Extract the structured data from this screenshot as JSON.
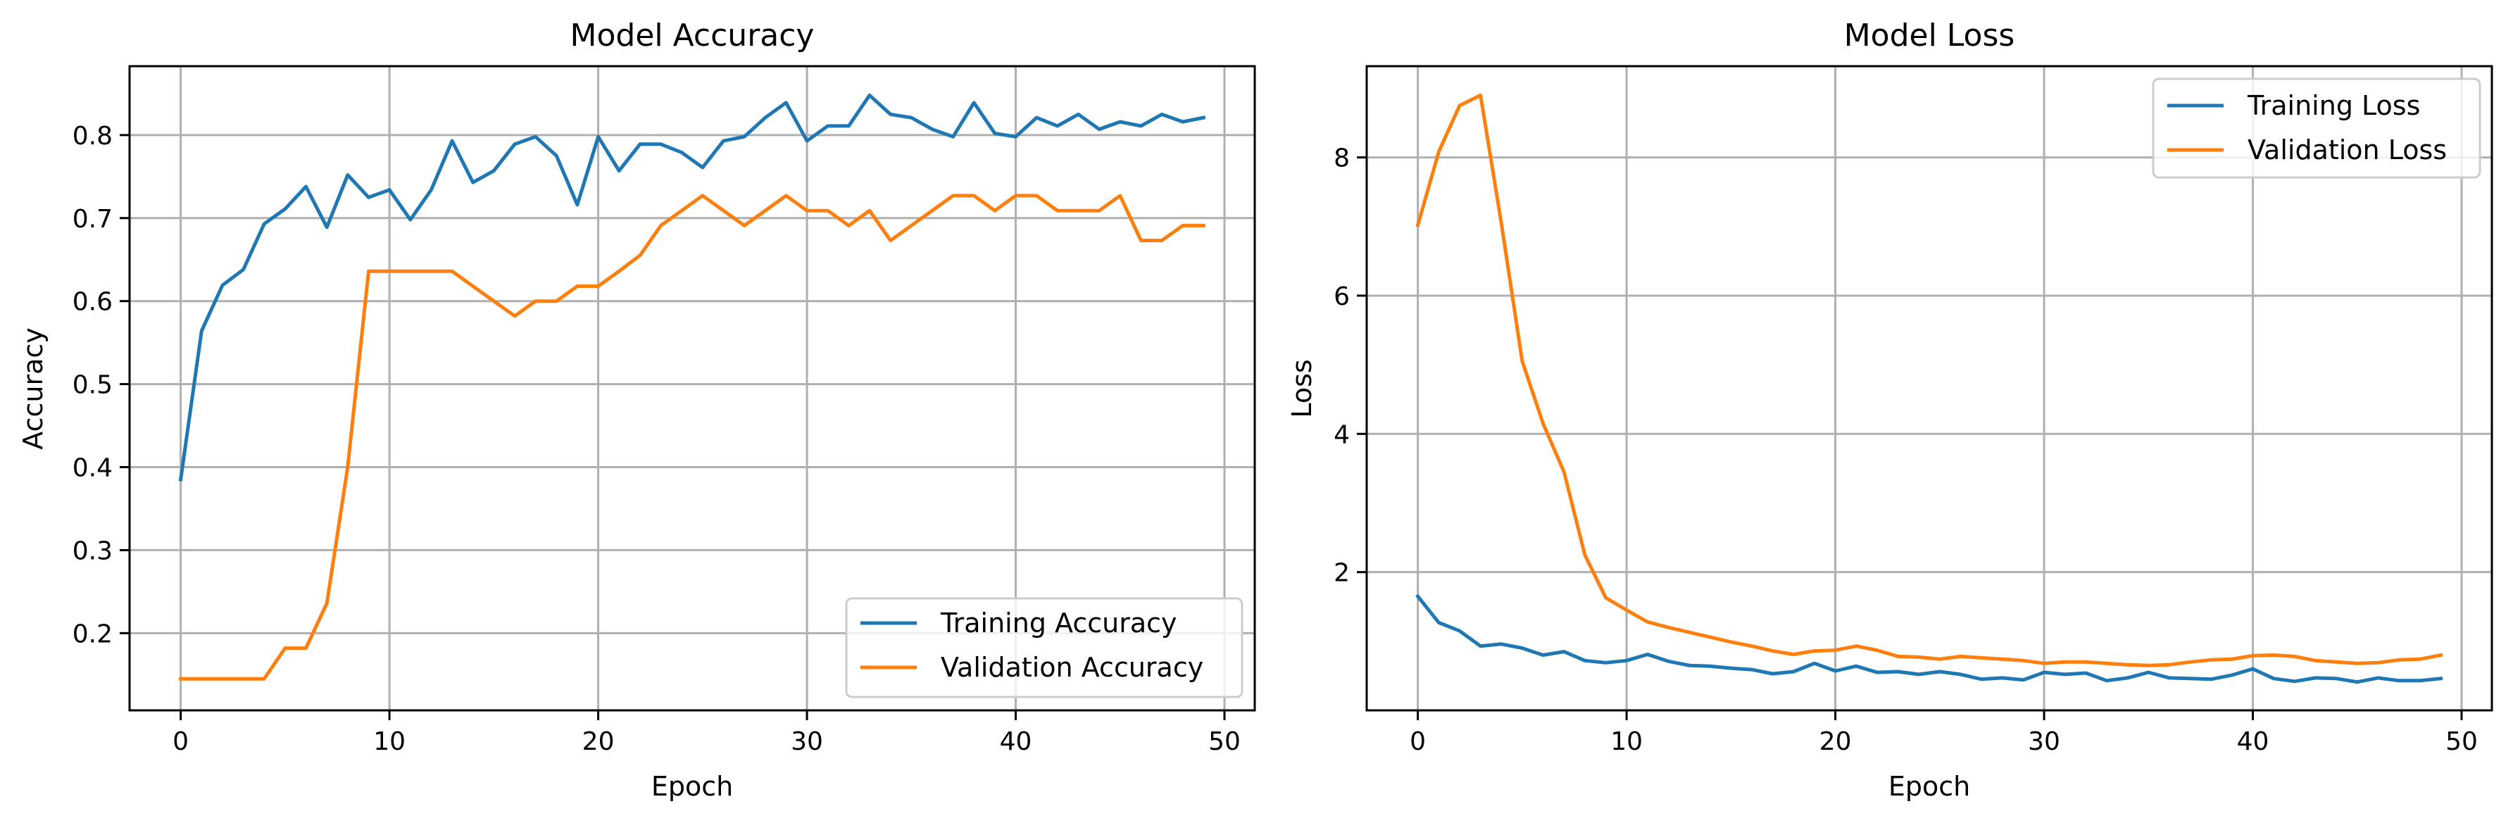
{
  "chart_data": [
    {
      "type": "line",
      "title": "Model Accuracy",
      "xlabel": "Epoch",
      "ylabel": "Accuracy",
      "xlim": [
        -2.45,
        51.45
      ],
      "ylim": [
        0.107,
        0.883
      ],
      "xticks": [
        0,
        10,
        20,
        30,
        40,
        50
      ],
      "yticks": [
        0.2,
        0.3,
        0.4,
        0.5,
        0.6,
        0.7,
        0.8
      ],
      "grid": true,
      "legend_position": "lower-right",
      "x": [
        0,
        1,
        2,
        3,
        4,
        5,
        6,
        7,
        8,
        9,
        10,
        11,
        12,
        13,
        14,
        15,
        16,
        17,
        18,
        19,
        20,
        21,
        22,
        23,
        24,
        25,
        26,
        27,
        28,
        29,
        30,
        31,
        32,
        33,
        34,
        35,
        36,
        37,
        38,
        39,
        40,
        41,
        42,
        43,
        44,
        45,
        46,
        47,
        48,
        49
      ],
      "series": [
        {
          "name": "Training Accuracy",
          "color": "#1f77b4",
          "values": [
            0.385,
            0.564,
            0.619,
            0.638,
            0.693,
            0.711,
            0.738,
            0.689,
            0.752,
            0.725,
            0.734,
            0.698,
            0.734,
            0.793,
            0.743,
            0.757,
            0.789,
            0.798,
            0.775,
            0.716,
            0.798,
            0.757,
            0.789,
            0.789,
            0.779,
            0.761,
            0.793,
            0.798,
            0.821,
            0.839,
            0.793,
            0.811,
            0.811,
            0.848,
            0.825,
            0.821,
            0.807,
            0.798,
            0.839,
            0.802,
            0.798,
            0.821,
            0.811,
            0.825,
            0.807,
            0.816,
            0.811,
            0.825,
            0.816,
            0.821
          ]
        },
        {
          "name": "Validation Accuracy",
          "color": "#ff7f0e",
          "values": [
            0.145,
            0.145,
            0.145,
            0.145,
            0.145,
            0.182,
            0.182,
            0.236,
            0.4,
            0.636,
            0.636,
            0.636,
            0.636,
            0.636,
            0.618,
            0.6,
            0.582,
            0.6,
            0.6,
            0.618,
            0.618,
            0.636,
            0.655,
            0.691,
            0.709,
            0.727,
            0.709,
            0.691,
            0.709,
            0.727,
            0.709,
            0.709,
            0.691,
            0.709,
            0.673,
            0.691,
            0.709,
            0.727,
            0.727,
            0.709,
            0.727,
            0.727,
            0.709,
            0.709,
            0.709,
            0.727,
            0.673,
            0.673,
            0.691,
            0.691
          ]
        }
      ]
    },
    {
      "type": "line",
      "title": "Model Loss",
      "xlabel": "Epoch",
      "ylabel": "Loss",
      "xlim": [
        -2.45,
        51.45
      ],
      "ylim": [
        0.0,
        9.32
      ],
      "xticks": [
        0,
        10,
        20,
        30,
        40,
        50
      ],
      "yticks": [
        2,
        4,
        6,
        8
      ],
      "grid": true,
      "legend_position": "upper-right",
      "x": [
        0,
        1,
        2,
        3,
        4,
        5,
        6,
        7,
        8,
        9,
        10,
        11,
        12,
        13,
        14,
        15,
        16,
        17,
        18,
        19,
        20,
        21,
        22,
        23,
        24,
        25,
        26,
        27,
        28,
        29,
        30,
        31,
        32,
        33,
        34,
        35,
        36,
        37,
        38,
        39,
        40,
        41,
        42,
        43,
        44,
        45,
        46,
        47,
        48,
        49
      ],
      "series": [
        {
          "name": "Training Loss",
          "color": "#1f77b4",
          "values": [
            1.65,
            1.27,
            1.15,
            0.93,
            0.96,
            0.9,
            0.8,
            0.85,
            0.72,
            0.69,
            0.72,
            0.81,
            0.71,
            0.65,
            0.64,
            0.61,
            0.59,
            0.53,
            0.56,
            0.68,
            0.57,
            0.64,
            0.55,
            0.56,
            0.52,
            0.56,
            0.52,
            0.45,
            0.47,
            0.44,
            0.55,
            0.52,
            0.54,
            0.43,
            0.47,
            0.55,
            0.47,
            0.46,
            0.45,
            0.51,
            0.6,
            0.46,
            0.42,
            0.47,
            0.46,
            0.41,
            0.47,
            0.43,
            0.43,
            0.46
          ]
        },
        {
          "name": "Validation Loss",
          "color": "#ff7f0e",
          "values": [
            7.02,
            8.08,
            8.75,
            8.9,
            7.05,
            5.05,
            4.15,
            3.45,
            2.25,
            1.63,
            1.45,
            1.28,
            1.2,
            1.13,
            1.06,
            0.99,
            0.93,
            0.86,
            0.81,
            0.86,
            0.87,
            0.93,
            0.87,
            0.78,
            0.77,
            0.74,
            0.78,
            0.76,
            0.74,
            0.72,
            0.68,
            0.7,
            0.7,
            0.68,
            0.66,
            0.65,
            0.66,
            0.7,
            0.73,
            0.74,
            0.79,
            0.8,
            0.78,
            0.72,
            0.7,
            0.68,
            0.69,
            0.73,
            0.74,
            0.8
          ]
        }
      ]
    }
  ]
}
